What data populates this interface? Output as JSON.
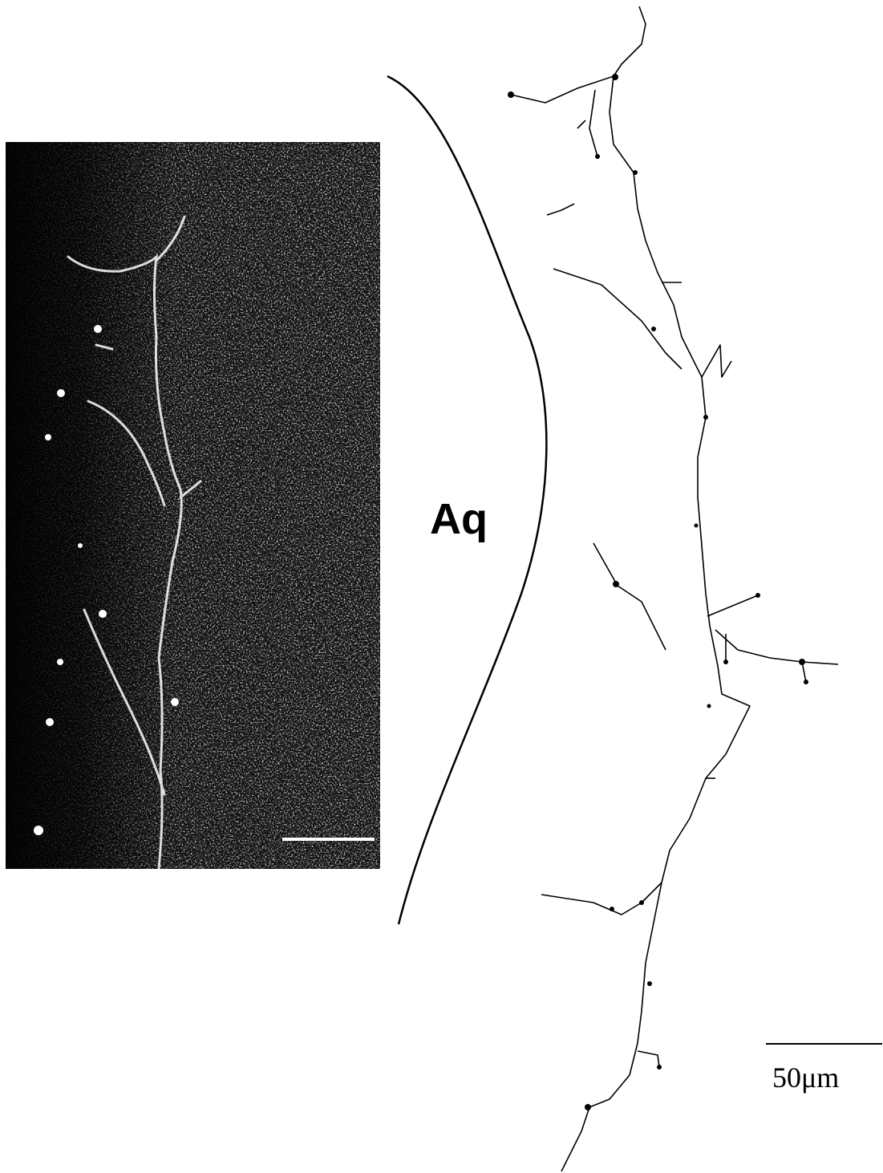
{
  "labels": {
    "aq": "Aq",
    "scale": "50μm"
  }
}
